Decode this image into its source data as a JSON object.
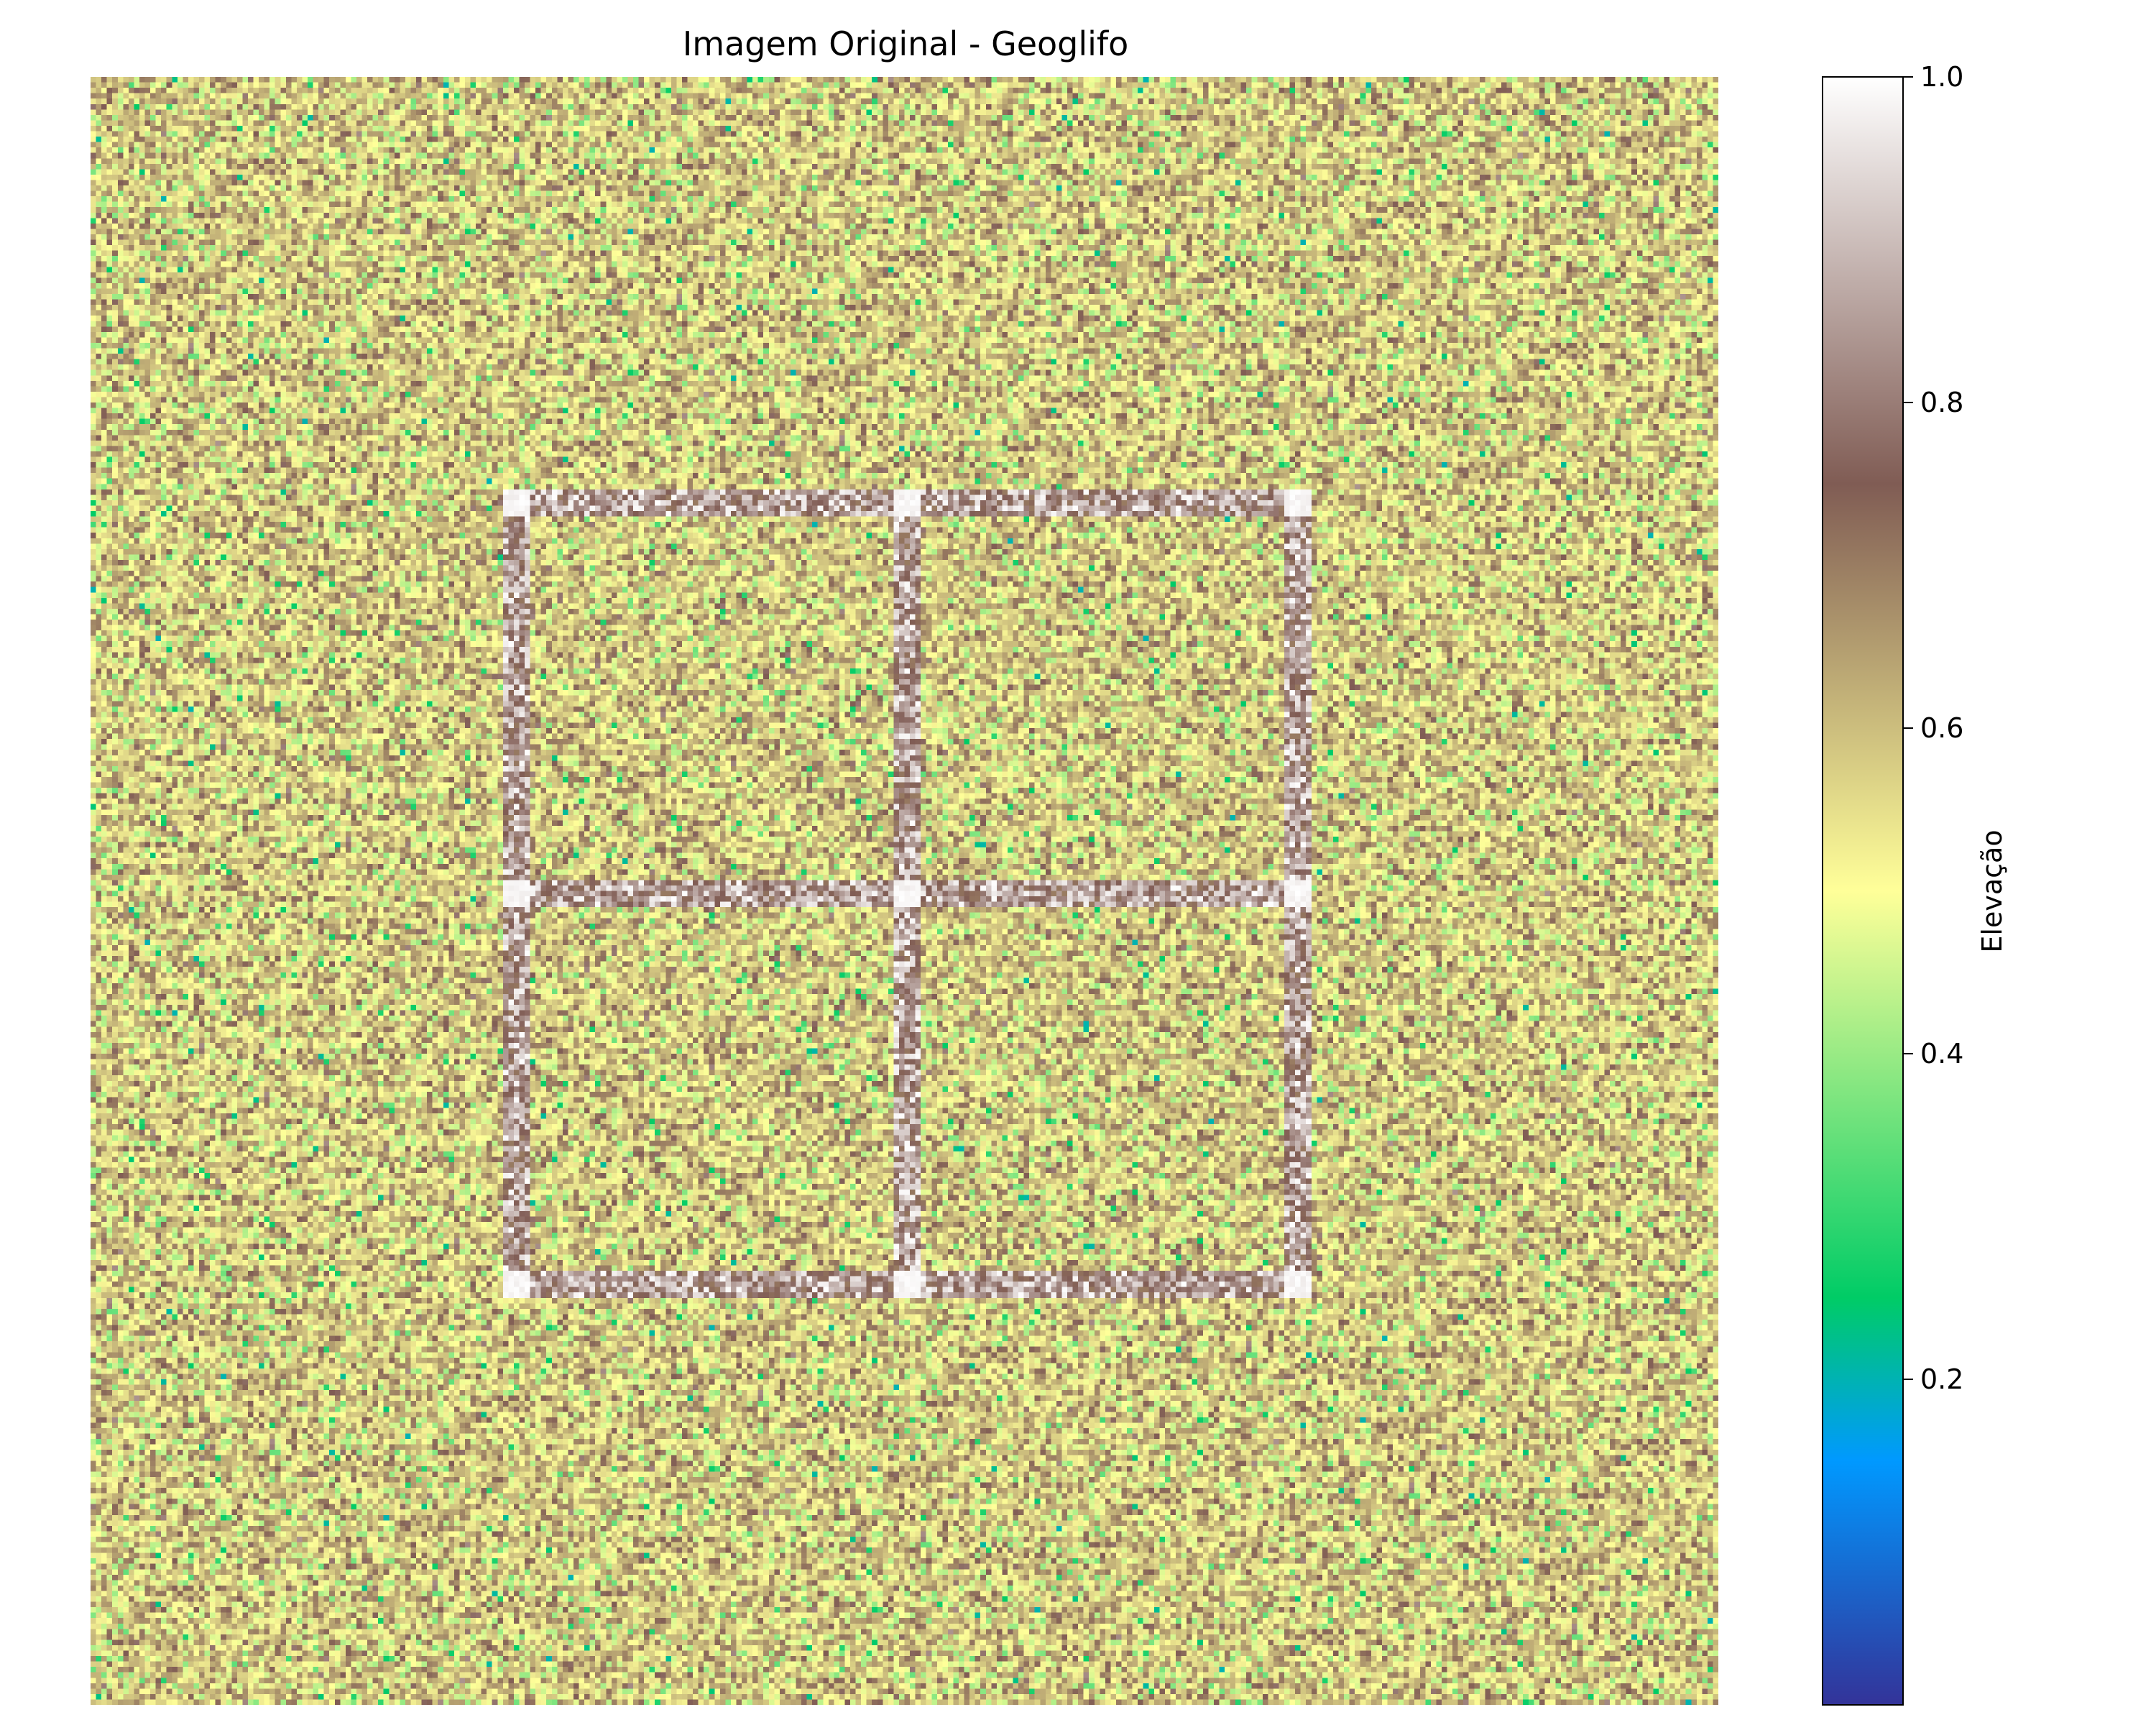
{
  "chart_data": {
    "type": "heatmap",
    "title": "Imagem Original - Geoglifo",
    "xlabel": "",
    "ylabel": "",
    "axes_visible": false,
    "grid": false,
    "image": {
      "grid_size": 300,
      "description_of_content": "noisy terrain field with a 2x2 square grid geoglyph",
      "background_value_range": [
        0.3,
        0.85
      ],
      "geoglyph": {
        "shape": "2x2 grid of squares",
        "x_lines": [
          78,
          150,
          222
        ],
        "y_lines": [
          78,
          150,
          222
        ],
        "line_width": 5,
        "line_value_range": [
          0.7,
          1.0
        ],
        "node_value": 1.0
      }
    },
    "colorbar": {
      "label": "Elevação",
      "colormap": "terrain",
      "range": [
        0.0,
        1.0
      ],
      "ticks": [
        "0.2",
        "0.4",
        "0.6",
        "0.8",
        "1.0"
      ],
      "tick_values": [
        0.2,
        0.4,
        0.6,
        0.8,
        1.0
      ],
      "colors": [
        {
          "v": 0.0,
          "c": "#333399"
        },
        {
          "v": 0.15,
          "c": "#0099ff"
        },
        {
          "v": 0.25,
          "c": "#00cc66"
        },
        {
          "v": 0.5,
          "c": "#ffff99"
        },
        {
          "v": 0.75,
          "c": "#805c54"
        },
        {
          "v": 1.0,
          "c": "#ffffff"
        }
      ]
    }
  }
}
